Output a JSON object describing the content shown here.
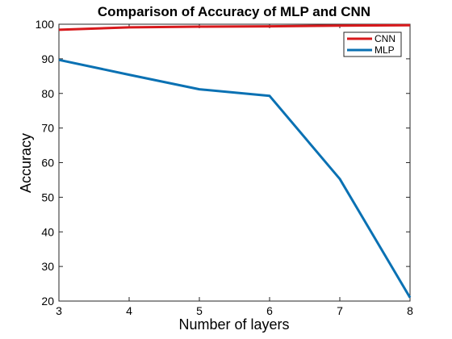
{
  "chart_data": {
    "type": "line",
    "title": "Comparison of Accuracy of MLP and CNN",
    "xlabel": "Number of layers",
    "ylabel": "Accuracy",
    "xlim": [
      3,
      8
    ],
    "ylim": [
      20,
      100
    ],
    "x_ticks": [
      3,
      4,
      5,
      6,
      7,
      8
    ],
    "y_ticks": [
      20,
      30,
      40,
      50,
      60,
      70,
      80,
      90,
      100
    ],
    "grid": false,
    "legend_position": "top-right",
    "x": [
      3,
      4,
      5,
      6,
      7,
      8
    ],
    "series": [
      {
        "name": "CNN",
        "color": "#d7191c",
        "values": [
          98.4,
          99.1,
          99.3,
          99.4,
          99.6,
          99.7
        ]
      },
      {
        "name": "MLP",
        "color": "#0a71b3",
        "values": [
          89.7,
          85.4,
          81.2,
          79.3,
          55.3,
          21.0
        ]
      }
    ]
  }
}
